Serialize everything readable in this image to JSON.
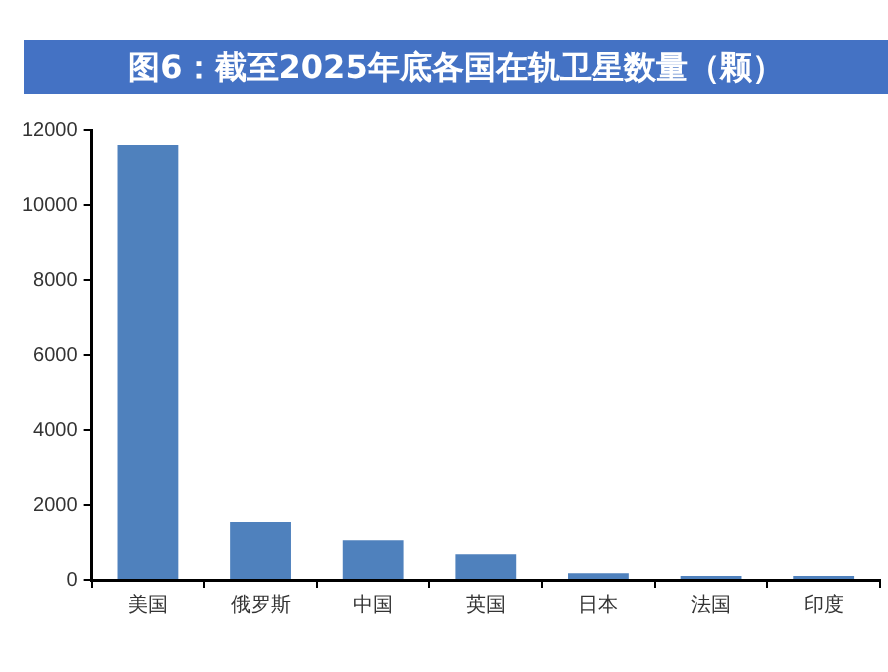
{
  "chart_data": {
    "type": "bar",
    "title": "图6：截至2025年底各国在轨卫星数量（颗）",
    "categories": [
      "美国",
      "俄罗斯",
      "中国",
      "英国",
      "日本",
      "法国",
      "印度"
    ],
    "values": [
      11600,
      1550,
      1060,
      690,
      180,
      110,
      110
    ],
    "color": "#4f81bd",
    "ylim": [
      0,
      12000
    ],
    "yticks": [
      0,
      2000,
      4000,
      6000,
      8000,
      10000,
      12000
    ],
    "grid": false,
    "legend": false
  }
}
